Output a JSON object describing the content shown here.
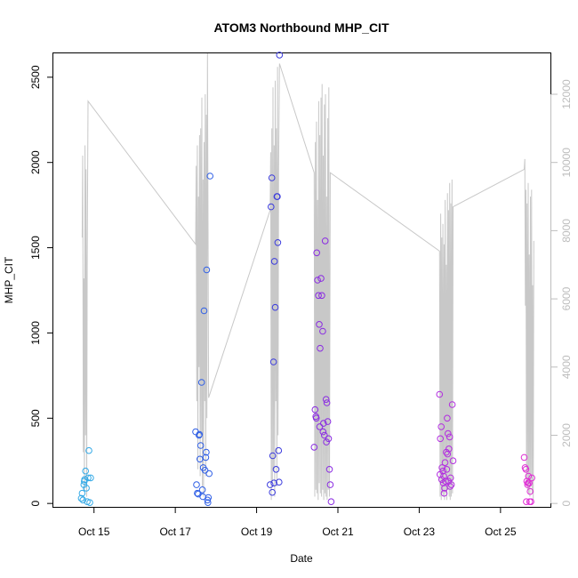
{
  "chart_data": {
    "type": "scatter",
    "title": "ATOM3 Northbound MHP_CIT",
    "xlabel": "Date",
    "ylabel": "MHP_CIT",
    "xlim": [
      "2023-10-14T00:00",
      "2023-10-26T06:00"
    ],
    "ylim": [
      -20,
      2640
    ],
    "y2lim": [
      -100,
      13200
    ],
    "grid": false,
    "legend": "none",
    "x_ticks": [
      {
        "date": "2023-10-15T00:00",
        "label": "Oct 15"
      },
      {
        "date": "2023-10-17T00:00",
        "label": "Oct 17"
      },
      {
        "date": "2023-10-19T00:00",
        "label": "Oct 19"
      },
      {
        "date": "2023-10-21T00:00",
        "label": "Oct 21"
      },
      {
        "date": "2023-10-23T00:00",
        "label": "Oct 23"
      },
      {
        "date": "2023-10-25T00:00",
        "label": "Oct 25"
      }
    ],
    "y_ticks": [
      0,
      500,
      1000,
      1500,
      2000,
      2500
    ],
    "y2_ticks": [
      0,
      2000,
      4000,
      6000,
      8000,
      10000,
      12000
    ],
    "colors": {
      "axis": "#000000",
      "line": "#c8c8c8",
      "right_axis": "#bdbdbd"
    },
    "point_series": [
      {
        "color": "#33a9e6",
        "points": [
          [
            "2023-10-14T17:00",
            60
          ],
          [
            "2023-10-14T17:30",
            20
          ],
          [
            "2023-10-14T18:00",
            110
          ],
          [
            "2023-10-14T18:30",
            140
          ],
          [
            "2023-10-14T19:00",
            190
          ],
          [
            "2023-10-14T19:30",
            90
          ],
          [
            "2023-10-14T20:00",
            10
          ],
          [
            "2023-10-14T20:30",
            150
          ],
          [
            "2023-10-14T21:00",
            310
          ],
          [
            "2023-10-14T21:30",
            5
          ],
          [
            "2023-10-14T22:00",
            150
          ],
          [
            "2023-10-14T16:30",
            30
          ],
          [
            "2023-10-14T18:15",
            130
          ]
        ]
      },
      {
        "color": "#2f5fe6",
        "points": [
          [
            "2023-10-17T12:00",
            420
          ],
          [
            "2023-10-17T12:30",
            110
          ],
          [
            "2023-10-17T13:00",
            60
          ],
          [
            "2023-10-17T14:00",
            400
          ],
          [
            "2023-10-17T14:30",
            260
          ],
          [
            "2023-10-17T15:00",
            340
          ],
          [
            "2023-10-17T15:30",
            710
          ],
          [
            "2023-10-17T16:00",
            80
          ],
          [
            "2023-10-17T16:30",
            210
          ],
          [
            "2023-10-17T17:00",
            1130
          ],
          [
            "2023-10-17T17:30",
            195
          ],
          [
            "2023-10-17T18:00",
            270
          ],
          [
            "2023-10-17T18:30",
            1370
          ],
          [
            "2023-10-17T19:00",
            20
          ],
          [
            "2023-10-17T19:30",
            35
          ],
          [
            "2023-10-17T20:00",
            175
          ],
          [
            "2023-10-17T20:30",
            1920
          ],
          [
            "2023-10-17T13:30",
            55
          ],
          [
            "2023-10-17T16:15",
            40
          ],
          [
            "2023-10-17T19:15",
            5
          ],
          [
            "2023-10-17T18:15",
            300
          ],
          [
            "2023-10-17T14:15",
            405
          ]
        ]
      },
      {
        "color": "#3b3bdd",
        "points": [
          [
            "2023-10-19T08:00",
            110
          ],
          [
            "2023-10-19T08:30",
            1740
          ],
          [
            "2023-10-19T09:00",
            1910
          ],
          [
            "2023-10-19T09:30",
            280
          ],
          [
            "2023-10-19T10:00",
            830
          ],
          [
            "2023-10-19T10:30",
            1420
          ],
          [
            "2023-10-19T11:00",
            1150
          ],
          [
            "2023-10-19T11:30",
            200
          ],
          [
            "2023-10-19T12:00",
            1800
          ],
          [
            "2023-10-19T12:30",
            1530
          ],
          [
            "2023-10-19T13:00",
            310
          ],
          [
            "2023-10-19T13:30",
            2630
          ],
          [
            "2023-10-19T09:15",
            65
          ],
          [
            "2023-10-19T12:15",
            1800
          ],
          [
            "2023-10-19T10:15",
            120
          ],
          [
            "2023-10-19T13:15",
            125
          ]
        ]
      },
      {
        "color": "#8a2be2",
        "points": [
          [
            "2023-10-20T10:00",
            330
          ],
          [
            "2023-10-20T10:30",
            550
          ],
          [
            "2023-10-20T11:00",
            510
          ],
          [
            "2023-10-20T11:30",
            1470
          ],
          [
            "2023-10-20T12:00",
            1310
          ],
          [
            "2023-10-20T12:30",
            1220
          ],
          [
            "2023-10-20T13:00",
            1050
          ],
          [
            "2023-10-20T13:30",
            910
          ],
          [
            "2023-10-20T14:00",
            1320
          ],
          [
            "2023-10-20T14:30",
            1220
          ],
          [
            "2023-10-20T15:00",
            1010
          ],
          [
            "2023-10-20T15:30",
            470
          ],
          [
            "2023-10-20T16:00",
            400
          ],
          [
            "2023-10-20T16:30",
            1540
          ],
          [
            "2023-10-20T17:00",
            610
          ],
          [
            "2023-10-20T17:30",
            590
          ],
          [
            "2023-10-20T18:00",
            480
          ],
          [
            "2023-10-20T18:30",
            380
          ],
          [
            "2023-10-20T19:00",
            200
          ],
          [
            "2023-10-20T19:30",
            110
          ],
          [
            "2023-10-20T20:00",
            10
          ],
          [
            "2023-10-20T13:15",
            450
          ],
          [
            "2023-10-20T15:15",
            420
          ],
          [
            "2023-10-20T17:15",
            360
          ],
          [
            "2023-10-20T11:15",
            500
          ]
        ]
      },
      {
        "color": "#b32de0",
        "points": [
          [
            "2023-10-23T12:00",
            640
          ],
          [
            "2023-10-23T12:30",
            380
          ],
          [
            "2023-10-23T13:00",
            450
          ],
          [
            "2023-10-23T13:30",
            210
          ],
          [
            "2023-10-23T14:00",
            190
          ],
          [
            "2023-10-23T14:30",
            160
          ],
          [
            "2023-10-23T15:00",
            90
          ],
          [
            "2023-10-23T15:30",
            130
          ],
          [
            "2023-10-23T16:00",
            300
          ],
          [
            "2023-10-23T16:30",
            500
          ],
          [
            "2023-10-23T17:00",
            410
          ],
          [
            "2023-10-23T17:30",
            320
          ],
          [
            "2023-10-23T18:00",
            390
          ],
          [
            "2023-10-23T18:30",
            150
          ],
          [
            "2023-10-23T19:00",
            110
          ],
          [
            "2023-10-23T19:30",
            580
          ],
          [
            "2023-10-23T20:00",
            250
          ],
          [
            "2023-10-23T12:15",
            170
          ],
          [
            "2023-10-23T13:15",
            140
          ],
          [
            "2023-10-23T14:15",
            120
          ],
          [
            "2023-10-23T15:15",
            240
          ],
          [
            "2023-10-23T16:15",
            200
          ],
          [
            "2023-10-23T17:15",
            130
          ],
          [
            "2023-10-23T18:15",
            100
          ],
          [
            "2023-10-23T14:45",
            60
          ],
          [
            "2023-10-23T16:45",
            290
          ]
        ]
      },
      {
        "color": "#e02dd5",
        "points": [
          [
            "2023-10-25T14:00",
            270
          ],
          [
            "2023-10-25T14:30",
            210
          ],
          [
            "2023-10-25T15:00",
            200
          ],
          [
            "2023-10-25T15:30",
            130
          ],
          [
            "2023-10-25T16:00",
            110
          ],
          [
            "2023-10-25T16:30",
            160
          ],
          [
            "2023-10-25T17:00",
            120
          ],
          [
            "2023-10-25T17:30",
            70
          ],
          [
            "2023-10-25T18:00",
            10
          ],
          [
            "2023-10-25T18:30",
            150
          ],
          [
            "2023-10-25T15:15",
            10
          ],
          [
            "2023-10-25T16:15",
            120
          ],
          [
            "2023-10-25T17:15",
            10
          ]
        ]
      }
    ],
    "line_series_right_axis": [
      [
        "2023-10-14T17:00",
        7800
      ],
      [
        "2023-10-14T17:20",
        10200
      ],
      [
        "2023-10-14T17:40",
        1500
      ],
      [
        "2023-10-14T18:00",
        6600
      ],
      [
        "2023-10-14T18:20",
        400
      ],
      [
        "2023-10-14T18:40",
        10500
      ],
      [
        "2023-10-14T19:00",
        2000
      ],
      [
        "2023-10-14T19:20",
        9800
      ],
      [
        "2023-10-14T19:40",
        200
      ],
      [
        "2023-10-14T20:00",
        7200
      ],
      [
        "2023-10-14T20:30",
        11800
      ],
      [
        "2023-10-17T12:00",
        7600
      ],
      [
        "2023-10-17T12:20",
        9900
      ],
      [
        "2023-10-17T12:40",
        3000
      ],
      [
        "2023-10-17T13:00",
        10500
      ],
      [
        "2023-10-17T13:20",
        1000
      ],
      [
        "2023-10-17T13:40",
        9000
      ],
      [
        "2023-10-17T14:00",
        4000
      ],
      [
        "2023-10-17T14:20",
        10800
      ],
      [
        "2023-10-17T14:40",
        800
      ],
      [
        "2023-10-17T15:00",
        11000
      ],
      [
        "2023-10-17T15:20",
        2000
      ],
      [
        "2023-10-17T15:40",
        11900
      ],
      [
        "2023-10-17T16:00",
        500
      ],
      [
        "2023-10-17T16:20",
        9500
      ],
      [
        "2023-10-17T16:40",
        200
      ],
      [
        "2023-10-17T17:00",
        10600
      ],
      [
        "2023-10-17T17:20",
        3000
      ],
      [
        "2023-10-17T17:40",
        12000
      ],
      [
        "2023-10-17T18:00",
        800
      ],
      [
        "2023-10-17T18:20",
        11400
      ],
      [
        "2023-10-17T18:40",
        2500
      ],
      [
        "2023-10-17T19:00",
        13200
      ],
      [
        "2023-10-17T19:40",
        3100
      ],
      [
        "2023-10-19T08:00",
        8600
      ],
      [
        "2023-10-19T08:20",
        10300
      ],
      [
        "2023-10-19T08:40",
        100
      ],
      [
        "2023-10-19T09:00",
        11000
      ],
      [
        "2023-10-19T09:20",
        600
      ],
      [
        "2023-10-19T09:40",
        12200
      ],
      [
        "2023-10-19T10:00",
        1000
      ],
      [
        "2023-10-19T10:20",
        10500
      ],
      [
        "2023-10-19T10:40",
        200
      ],
      [
        "2023-10-19T11:00",
        12400
      ],
      [
        "2023-10-19T11:20",
        3000
      ],
      [
        "2023-10-19T11:40",
        11000
      ],
      [
        "2023-10-19T12:00",
        500
      ],
      [
        "2023-10-19T12:20",
        12800
      ],
      [
        "2023-10-19T12:40",
        2000
      ],
      [
        "2023-10-19T13:00",
        9800
      ],
      [
        "2023-10-19T13:30",
        12900
      ],
      [
        "2023-10-20T10:00",
        9700
      ],
      [
        "2023-10-20T10:20",
        200
      ],
      [
        "2023-10-20T10:40",
        10600
      ],
      [
        "2023-10-20T11:00",
        400
      ],
      [
        "2023-10-20T11:20",
        11200
      ],
      [
        "2023-10-20T11:40",
        300
      ],
      [
        "2023-10-20T12:00",
        8900
      ],
      [
        "2023-10-20T12:20",
        100
      ],
      [
        "2023-10-20T12:40",
        11800
      ],
      [
        "2023-10-20T13:00",
        600
      ],
      [
        "2023-10-20T13:20",
        10800
      ],
      [
        "2023-10-20T13:40",
        300
      ],
      [
        "2023-10-20T14:00",
        11900
      ],
      [
        "2023-10-20T14:20",
        200
      ],
      [
        "2023-10-20T14:40",
        12300
      ],
      [
        "2023-10-20T15:00",
        400
      ],
      [
        "2023-10-20T15:20",
        10200
      ],
      [
        "2023-10-20T15:40",
        100
      ],
      [
        "2023-10-20T16:00",
        11700
      ],
      [
        "2023-10-20T16:20",
        300
      ],
      [
        "2023-10-20T16:40",
        12000
      ],
      [
        "2023-10-20T17:00",
        200
      ],
      [
        "2023-10-20T17:20",
        9000
      ],
      [
        "2023-10-20T17:40",
        100
      ],
      [
        "2023-10-20T18:00",
        11300
      ],
      [
        "2023-10-20T18:20",
        400
      ],
      [
        "2023-10-20T18:40",
        12200
      ],
      [
        "2023-10-20T19:00",
        200
      ],
      [
        "2023-10-20T19:30",
        9700
      ],
      [
        "2023-10-23T12:00",
        7400
      ],
      [
        "2023-10-23T12:20",
        200
      ],
      [
        "2023-10-23T12:40",
        8500
      ],
      [
        "2023-10-23T13:00",
        100
      ],
      [
        "2023-10-23T13:20",
        7800
      ],
      [
        "2023-10-23T13:40",
        300
      ],
      [
        "2023-10-23T14:00",
        8200
      ],
      [
        "2023-10-23T14:20",
        200
      ],
      [
        "2023-10-23T14:40",
        7600
      ],
      [
        "2023-10-23T15:00",
        100
      ],
      [
        "2023-10-23T15:20",
        8900
      ],
      [
        "2023-10-23T15:40",
        300
      ],
      [
        "2023-10-23T16:00",
        7000
      ],
      [
        "2023-10-23T16:20",
        100
      ],
      [
        "2023-10-23T16:40",
        9100
      ],
      [
        "2023-10-23T17:00",
        400
      ],
      [
        "2023-10-23T17:20",
        8600
      ],
      [
        "2023-10-23T17:40",
        200
      ],
      [
        "2023-10-23T18:00",
        9400
      ],
      [
        "2023-10-23T18:20",
        100
      ],
      [
        "2023-10-23T18:40",
        8800
      ],
      [
        "2023-10-23T19:00",
        200
      ],
      [
        "2023-10-23T19:20",
        9500
      ],
      [
        "2023-10-23T19:40",
        300
      ],
      [
        "2023-10-23T20:00",
        8700
      ],
      [
        "2023-10-25T14:00",
        9800
      ],
      [
        "2023-10-25T14:20",
        10100
      ],
      [
        "2023-10-25T14:40",
        5800
      ],
      [
        "2023-10-25T15:00",
        9200
      ],
      [
        "2023-10-25T15:20",
        600
      ],
      [
        "2023-10-25T15:40",
        8800
      ],
      [
        "2023-10-25T16:00",
        400
      ],
      [
        "2023-10-25T16:20",
        9400
      ],
      [
        "2023-10-25T16:40",
        300
      ],
      [
        "2023-10-25T17:00",
        7300
      ],
      [
        "2023-10-25T17:20",
        200
      ],
      [
        "2023-10-25T17:40",
        9000
      ],
      [
        "2023-10-25T18:00",
        500
      ],
      [
        "2023-10-25T18:20",
        9200
      ],
      [
        "2023-10-25T18:40",
        300
      ],
      [
        "2023-10-25T19:00",
        6400
      ],
      [
        "2023-10-25T19:20",
        100
      ],
      [
        "2023-10-25T19:40",
        7700
      ]
    ]
  }
}
